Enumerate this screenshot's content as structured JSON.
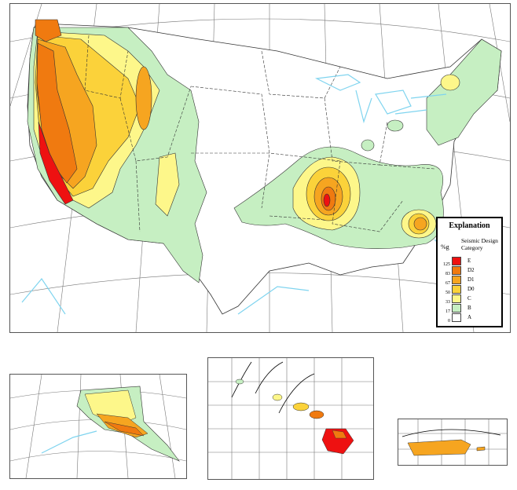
{
  "legend": {
    "title": "Explanation",
    "percent_label": "%g",
    "heading_line1": "Seismic Design",
    "heading_line2": "Category",
    "categories": [
      {
        "label": "E",
        "color": "#ee1111"
      },
      {
        "label": "D2",
        "color": "#f07a10"
      },
      {
        "label": "D1",
        "color": "#f6a520"
      },
      {
        "label": "D0",
        "color": "#fbd23a"
      },
      {
        "label": "C",
        "color": "#fdf78a"
      },
      {
        "label": "B",
        "color": "#c6efc2"
      },
      {
        "label": "A",
        "color": "#ffffff"
      }
    ],
    "ticks": [
      "125",
      "83",
      "67",
      "50",
      "33",
      "17",
      "0"
    ]
  },
  "colors": {
    "water": "#7fd4ef",
    "grid": "#555555",
    "border": "#333333"
  }
}
